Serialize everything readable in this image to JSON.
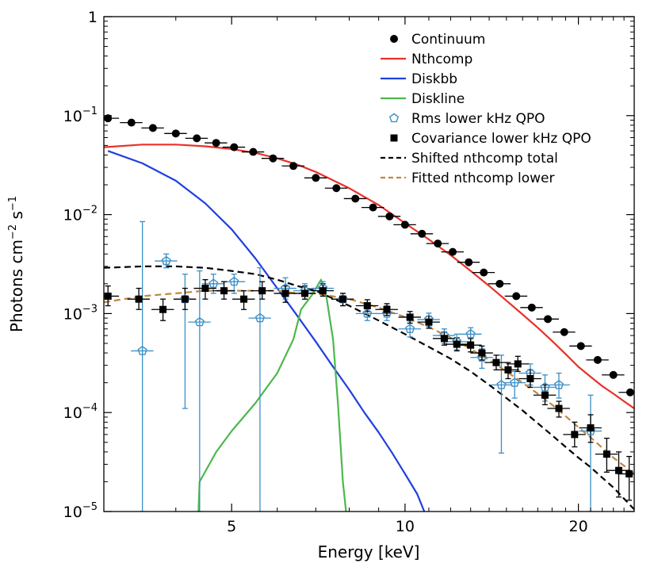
{
  "chart_data": {
    "type": "scatter",
    "xlabel": "Energy [keV]",
    "ylabel_parts": {
      "base": "Photons cm",
      "exp1": "−2",
      "mid": " s",
      "exp2": "−1"
    },
    "x_scale": "log",
    "y_scale": "log",
    "xlim": [
      3.0,
      25.0
    ],
    "ylim": [
      1e-05,
      1
    ],
    "x_ticks": [
      {
        "value": 5,
        "label": "5"
      },
      {
        "value": 10,
        "label": "10"
      },
      {
        "value": 20,
        "label": "20"
      }
    ],
    "y_ticks": [
      {
        "value": 1,
        "base": "1",
        "exp": ""
      },
      {
        "value": 0.1,
        "base": "10",
        "exp": "−1"
      },
      {
        "value": 0.01,
        "base": "10",
        "exp": "−2"
      },
      {
        "value": 0.001,
        "base": "10",
        "exp": "−3"
      },
      {
        "value": 0.0001,
        "base": "10",
        "exp": "−4"
      },
      {
        "value": 1e-05,
        "base": "10",
        "exp": "−5"
      }
    ],
    "legend_position": "top-right",
    "series": [
      {
        "name": "Continuum",
        "kind": "markers",
        "marker": "circle",
        "color": "#000000",
        "points": [
          {
            "x": 3.05,
            "y": 0.094
          },
          {
            "x": 3.35,
            "y": 0.085
          },
          {
            "x": 3.65,
            "y": 0.075
          },
          {
            "x": 4.0,
            "y": 0.066
          },
          {
            "x": 4.35,
            "y": 0.059
          },
          {
            "x": 4.7,
            "y": 0.053
          },
          {
            "x": 5.05,
            "y": 0.048
          },
          {
            "x": 5.45,
            "y": 0.043
          },
          {
            "x": 5.9,
            "y": 0.037
          },
          {
            "x": 6.4,
            "y": 0.031
          },
          {
            "x": 7.0,
            "y": 0.0235
          },
          {
            "x": 7.6,
            "y": 0.0185
          },
          {
            "x": 8.2,
            "y": 0.0145
          },
          {
            "x": 8.8,
            "y": 0.0118
          },
          {
            "x": 9.4,
            "y": 0.0096
          },
          {
            "x": 10.0,
            "y": 0.0079
          },
          {
            "x": 10.7,
            "y": 0.0064
          },
          {
            "x": 11.4,
            "y": 0.0051
          },
          {
            "x": 12.1,
            "y": 0.0042
          },
          {
            "x": 12.9,
            "y": 0.0033
          },
          {
            "x": 13.7,
            "y": 0.0026
          },
          {
            "x": 14.6,
            "y": 0.002
          },
          {
            "x": 15.6,
            "y": 0.0015
          },
          {
            "x": 16.6,
            "y": 0.00115
          },
          {
            "x": 17.7,
            "y": 0.00088
          },
          {
            "x": 18.9,
            "y": 0.00065
          },
          {
            "x": 20.2,
            "y": 0.00047
          },
          {
            "x": 21.6,
            "y": 0.00034
          },
          {
            "x": 23.0,
            "y": 0.00024
          },
          {
            "x": 24.6,
            "y": 0.00016
          }
        ]
      },
      {
        "name": "Nthcomp",
        "kind": "line",
        "color": "#e8312a",
        "dash": "",
        "points": [
          {
            "x": 3.0,
            "y": 0.048
          },
          {
            "x": 3.5,
            "y": 0.051
          },
          {
            "x": 4.0,
            "y": 0.051
          },
          {
            "x": 4.5,
            "y": 0.049
          },
          {
            "x": 5.0,
            "y": 0.046
          },
          {
            "x": 5.5,
            "y": 0.042
          },
          {
            "x": 6.0,
            "y": 0.037
          },
          {
            "x": 6.5,
            "y": 0.032
          },
          {
            "x": 7.0,
            "y": 0.027
          },
          {
            "x": 8.0,
            "y": 0.0185
          },
          {
            "x": 9.0,
            "y": 0.0125
          },
          {
            "x": 10.0,
            "y": 0.0082
          },
          {
            "x": 11.0,
            "y": 0.0056
          },
          {
            "x": 12.0,
            "y": 0.0039
          },
          {
            "x": 13.0,
            "y": 0.0027
          },
          {
            "x": 14.0,
            "y": 0.0019
          },
          {
            "x": 15.0,
            "y": 0.00135
          },
          {
            "x": 16.0,
            "y": 0.00098
          },
          {
            "x": 17.0,
            "y": 0.00072
          },
          {
            "x": 18.0,
            "y": 0.00053
          },
          {
            "x": 19.0,
            "y": 0.00039
          },
          {
            "x": 20.0,
            "y": 0.00029
          },
          {
            "x": 21.0,
            "y": 0.00023
          },
          {
            "x": 22.0,
            "y": 0.000185
          },
          {
            "x": 23.0,
            "y": 0.000155
          },
          {
            "x": 24.0,
            "y": 0.00013
          },
          {
            "x": 25.0,
            "y": 0.00011
          }
        ]
      },
      {
        "name": "Diskbb",
        "kind": "line",
        "color": "#1f3fe0",
        "dash": "",
        "points": [
          {
            "x": 3.05,
            "y": 0.044
          },
          {
            "x": 3.5,
            "y": 0.033
          },
          {
            "x": 4.0,
            "y": 0.022
          },
          {
            "x": 4.5,
            "y": 0.013
          },
          {
            "x": 5.0,
            "y": 0.0071
          },
          {
            "x": 5.5,
            "y": 0.0036
          },
          {
            "x": 6.0,
            "y": 0.0018
          },
          {
            "x": 6.5,
            "y": 0.00095
          },
          {
            "x": 7.0,
            "y": 0.00052
          },
          {
            "x": 7.5,
            "y": 0.00029
          },
          {
            "x": 8.0,
            "y": 0.00017
          },
          {
            "x": 8.5,
            "y": 0.0001
          },
          {
            "x": 9.0,
            "y": 6.3e-05
          },
          {
            "x": 9.5,
            "y": 3.9e-05
          },
          {
            "x": 10.0,
            "y": 2.4e-05
          },
          {
            "x": 10.5,
            "y": 1.5e-05
          },
          {
            "x": 10.8,
            "y": 1e-05
          }
        ]
      },
      {
        "name": "Diskline",
        "kind": "line",
        "color": "#4cb84c",
        "dash": "",
        "points": [
          {
            "x": 4.38,
            "y": 1e-05
          },
          {
            "x": 4.4,
            "y": 2e-05
          },
          {
            "x": 4.7,
            "y": 4e-05
          },
          {
            "x": 5.0,
            "y": 6.5e-05
          },
          {
            "x": 5.5,
            "y": 0.000125
          },
          {
            "x": 6.0,
            "y": 0.00025
          },
          {
            "x": 6.4,
            "y": 0.00055
          },
          {
            "x": 6.6,
            "y": 0.0011
          },
          {
            "x": 6.9,
            "y": 0.00155
          },
          {
            "x": 7.15,
            "y": 0.0022
          },
          {
            "x": 7.3,
            "y": 0.0015
          },
          {
            "x": 7.5,
            "y": 0.00055
          },
          {
            "x": 7.65,
            "y": 0.00012
          },
          {
            "x": 7.8,
            "y": 2e-05
          },
          {
            "x": 7.9,
            "y": 1e-05
          }
        ]
      },
      {
        "name": "Rms lower kHz QPO",
        "kind": "markers",
        "marker": "pentagon",
        "color": "#3d8fc6",
        "points": [
          {
            "x": 3.5,
            "y": 0.00042,
            "ylo": 1e-05,
            "yhi": 0.0085
          },
          {
            "x": 3.85,
            "y": 0.0034,
            "ylo": 0.0029,
            "yhi": 0.004
          },
          {
            "x": 4.15,
            "y": 0.0014,
            "ylo": 0.00011,
            "yhi": 0.0025
          },
          {
            "x": 4.4,
            "y": 0.00082,
            "ylo": 1e-05,
            "yhi": 0.0027
          },
          {
            "x": 4.65,
            "y": 0.002,
            "ylo": 0.0016,
            "yhi": 0.0025
          },
          {
            "x": 5.05,
            "y": 0.0021,
            "ylo": 0.0016,
            "yhi": 0.0025
          },
          {
            "x": 5.6,
            "y": 0.0009,
            "ylo": 1e-05,
            "yhi": 0.0029
          },
          {
            "x": 6.2,
            "y": 0.0018,
            "ylo": 0.0014,
            "yhi": 0.0023
          },
          {
            "x": 6.7,
            "y": 0.0017,
            "ylo": 0.0014,
            "yhi": 0.002
          },
          {
            "x": 7.2,
            "y": 0.0018,
            "ylo": 0.0015,
            "yhi": 0.0021
          },
          {
            "x": 7.8,
            "y": 0.0014,
            "ylo": 0.0012,
            "yhi": 0.0016
          },
          {
            "x": 8.6,
            "y": 0.001,
            "ylo": 0.00085,
            "yhi": 0.0012
          },
          {
            "x": 9.3,
            "y": 0.001,
            "ylo": 0.00085,
            "yhi": 0.0012
          },
          {
            "x": 10.2,
            "y": 0.0007,
            "ylo": 0.00058,
            "yhi": 0.00084
          },
          {
            "x": 11.0,
            "y": 0.00087,
            "ylo": 0.00074,
            "yhi": 0.00101
          },
          {
            "x": 11.7,
            "y": 0.0006,
            "ylo": 0.0005,
            "yhi": 0.0007
          },
          {
            "x": 12.3,
            "y": 0.00052,
            "ylo": 0.00043,
            "yhi": 0.00062
          },
          {
            "x": 13.0,
            "y": 0.00062,
            "ylo": 0.00052,
            "yhi": 0.00072
          },
          {
            "x": 13.6,
            "y": 0.00036,
            "ylo": 0.00028,
            "yhi": 0.00044
          },
          {
            "x": 14.7,
            "y": 0.00019,
            "ylo": 3.9e-05,
            "yhi": 0.00038
          },
          {
            "x": 15.5,
            "y": 0.0002,
            "ylo": 0.00014,
            "yhi": 0.00026
          },
          {
            "x": 16.5,
            "y": 0.00025,
            "ylo": 0.00019,
            "yhi": 0.00031
          },
          {
            "x": 17.5,
            "y": 0.00018,
            "ylo": 0.00013,
            "yhi": 0.00024
          },
          {
            "x": 18.5,
            "y": 0.00019,
            "ylo": 0.00014,
            "yhi": 0.00025
          },
          {
            "x": 21.0,
            "y": 6.5e-05,
            "ylo": 1e-05,
            "yhi": 0.00015
          }
        ]
      },
      {
        "name": "Covariance lower kHz QPO",
        "kind": "markers",
        "marker": "square",
        "color": "#000000",
        "points": [
          {
            "x": 3.05,
            "y": 0.0015,
            "ylo": 0.0012,
            "yhi": 0.0019
          },
          {
            "x": 3.45,
            "y": 0.0014,
            "ylo": 0.0011,
            "yhi": 0.0018
          },
          {
            "x": 3.8,
            "y": 0.0011,
            "ylo": 0.00085,
            "yhi": 0.0014
          },
          {
            "x": 4.15,
            "y": 0.0014,
            "ylo": 0.0011,
            "yhi": 0.0018
          },
          {
            "x": 4.5,
            "y": 0.0018,
            "ylo": 0.0014,
            "yhi": 0.0022
          },
          {
            "x": 4.85,
            "y": 0.0017,
            "ylo": 0.0014,
            "yhi": 0.0021
          },
          {
            "x": 5.25,
            "y": 0.0014,
            "ylo": 0.0011,
            "yhi": 0.0017
          },
          {
            "x": 5.65,
            "y": 0.0017,
            "ylo": 0.0014,
            "yhi": 0.0021
          },
          {
            "x": 6.2,
            "y": 0.0016,
            "ylo": 0.0013,
            "yhi": 0.0019
          },
          {
            "x": 6.7,
            "y": 0.0016,
            "ylo": 0.0014,
            "yhi": 0.0019
          },
          {
            "x": 7.2,
            "y": 0.0017,
            "ylo": 0.0015,
            "yhi": 0.002
          },
          {
            "x": 7.8,
            "y": 0.0014,
            "ylo": 0.0012,
            "yhi": 0.0016
          },
          {
            "x": 8.6,
            "y": 0.0012,
            "ylo": 0.00105,
            "yhi": 0.00138
          },
          {
            "x": 9.3,
            "y": 0.0011,
            "ylo": 0.00096,
            "yhi": 0.00126
          },
          {
            "x": 10.2,
            "y": 0.00092,
            "ylo": 0.0008,
            "yhi": 0.00105
          },
          {
            "x": 11.0,
            "y": 0.00082,
            "ylo": 0.00071,
            "yhi": 0.00094
          },
          {
            "x": 11.7,
            "y": 0.00056,
            "ylo": 0.00048,
            "yhi": 0.00065
          },
          {
            "x": 12.3,
            "y": 0.00049,
            "ylo": 0.00042,
            "yhi": 0.00057
          },
          {
            "x": 13.0,
            "y": 0.00048,
            "ylo": 0.00041,
            "yhi": 0.00056
          },
          {
            "x": 13.6,
            "y": 0.0004,
            "ylo": 0.00034,
            "yhi": 0.00047
          },
          {
            "x": 14.4,
            "y": 0.00032,
            "ylo": 0.00027,
            "yhi": 0.00038
          },
          {
            "x": 15.1,
            "y": 0.00027,
            "ylo": 0.00022,
            "yhi": 0.00032
          },
          {
            "x": 15.7,
            "y": 0.00031,
            "ylo": 0.00026,
            "yhi": 0.00037
          },
          {
            "x": 16.5,
            "y": 0.00022,
            "ylo": 0.00018,
            "yhi": 0.00027
          },
          {
            "x": 17.5,
            "y": 0.00015,
            "ylo": 0.00012,
            "yhi": 0.00019
          },
          {
            "x": 18.5,
            "y": 0.00011,
            "ylo": 9e-05,
            "yhi": 0.00013
          },
          {
            "x": 19.7,
            "y": 6e-05,
            "ylo": 4.5e-05,
            "yhi": 8e-05
          },
          {
            "x": 21.0,
            "y": 7e-05,
            "ylo": 5e-05,
            "yhi": 9.5e-05
          },
          {
            "x": 22.4,
            "y": 3.8e-05,
            "ylo": 2.5e-05,
            "yhi": 5.5e-05
          },
          {
            "x": 23.5,
            "y": 2.6e-05,
            "ylo": 1.4e-05,
            "yhi": 4e-05
          },
          {
            "x": 24.5,
            "y": 2.4e-05,
            "ylo": 1.3e-05,
            "yhi": 3.6e-05
          }
        ]
      },
      {
        "name": "Shifted nthcomp total",
        "kind": "line",
        "color": "#000000",
        "dash": "8,5",
        "points": [
          {
            "x": 3.0,
            "y": 0.0029
          },
          {
            "x": 3.5,
            "y": 0.003
          },
          {
            "x": 4.0,
            "y": 0.003
          },
          {
            "x": 4.5,
            "y": 0.0029
          },
          {
            "x": 5.0,
            "y": 0.0027
          },
          {
            "x": 5.5,
            "y": 0.0025
          },
          {
            "x": 6.0,
            "y": 0.0022
          },
          {
            "x": 6.5,
            "y": 0.0019
          },
          {
            "x": 7.0,
            "y": 0.0017
          },
          {
            "x": 8.0,
            "y": 0.0012
          },
          {
            "x": 9.0,
            "y": 0.00085
          },
          {
            "x": 10.0,
            "y": 0.00062
          },
          {
            "x": 11.0,
            "y": 0.00046
          },
          {
            "x": 12.0,
            "y": 0.00035
          },
          {
            "x": 13.0,
            "y": 0.00026
          },
          {
            "x": 14.0,
            "y": 0.00019
          },
          {
            "x": 15.0,
            "y": 0.00014
          },
          {
            "x": 16.0,
            "y": 0.000105
          },
          {
            "x": 17.0,
            "y": 7.8e-05
          },
          {
            "x": 18.0,
            "y": 5.9e-05
          },
          {
            "x": 19.0,
            "y": 4.5e-05
          },
          {
            "x": 20.0,
            "y": 3.5e-05
          },
          {
            "x": 21.0,
            "y": 2.8e-05
          },
          {
            "x": 22.0,
            "y": 2.2e-05
          },
          {
            "x": 23.0,
            "y": 1.75e-05
          },
          {
            "x": 24.0,
            "y": 1.35e-05
          },
          {
            "x": 25.0,
            "y": 1.05e-05
          }
        ]
      },
      {
        "name": "Fitted nthcomp lower",
        "kind": "line",
        "color": "#c08840",
        "dash": "8,5",
        "points": [
          {
            "x": 3.0,
            "y": 0.0013
          },
          {
            "x": 3.5,
            "y": 0.0015
          },
          {
            "x": 4.0,
            "y": 0.0016
          },
          {
            "x": 4.5,
            "y": 0.0017
          },
          {
            "x": 5.0,
            "y": 0.0017
          },
          {
            "x": 5.5,
            "y": 0.0017
          },
          {
            "x": 6.0,
            "y": 0.0017
          },
          {
            "x": 6.5,
            "y": 0.0016
          },
          {
            "x": 7.0,
            "y": 0.0016
          },
          {
            "x": 8.0,
            "y": 0.0014
          },
          {
            "x": 9.0,
            "y": 0.00115
          },
          {
            "x": 10.0,
            "y": 0.00092
          },
          {
            "x": 11.0,
            "y": 0.00073
          },
          {
            "x": 12.0,
            "y": 0.00057
          },
          {
            "x": 13.0,
            "y": 0.00044
          },
          {
            "x": 14.0,
            "y": 0.00034
          },
          {
            "x": 15.0,
            "y": 0.00026
          },
          {
            "x": 16.0,
            "y": 0.0002
          },
          {
            "x": 17.0,
            "y": 0.000155
          },
          {
            "x": 18.0,
            "y": 0.00012
          },
          {
            "x": 19.0,
            "y": 9.2e-05
          },
          {
            "x": 20.0,
            "y": 7.1e-05
          },
          {
            "x": 21.0,
            "y": 5.6e-05
          },
          {
            "x": 22.0,
            "y": 4.4e-05
          },
          {
            "x": 23.0,
            "y": 3.5e-05
          },
          {
            "x": 24.0,
            "y": 2.9e-05
          },
          {
            "x": 25.0,
            "y": 2.4e-05
          }
        ]
      }
    ]
  }
}
